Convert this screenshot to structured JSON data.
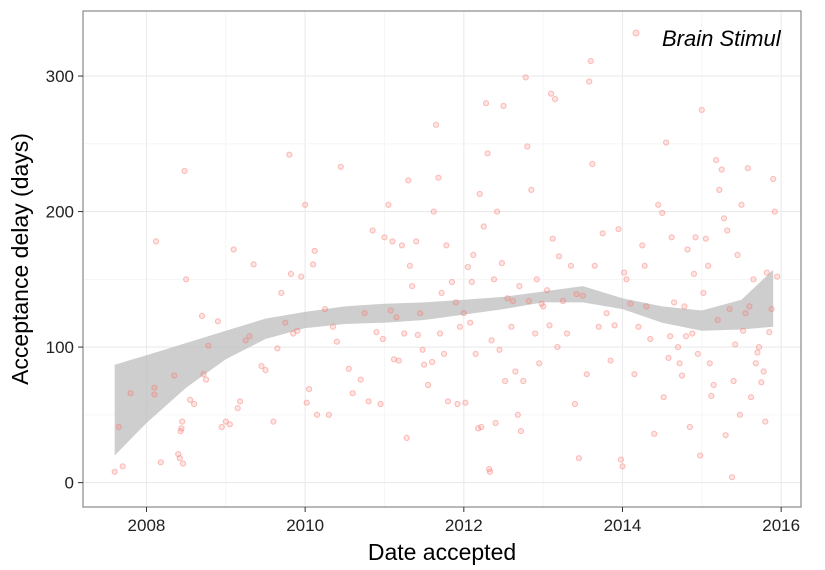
{
  "chart_data": {
    "type": "scatter",
    "xlabel": "Date accepted",
    "ylabel": "Acceptance delay (days)",
    "x_ticks": [
      "2008",
      "2010",
      "2012",
      "2014",
      "2016"
    ],
    "x_tick_values": [
      2008,
      2010,
      2012,
      2014,
      2016
    ],
    "y_ticks": [
      "0",
      "100",
      "200",
      "300"
    ],
    "y_tick_values": [
      0,
      100,
      200,
      300
    ],
    "xlim": [
      2007.2,
      2016.25
    ],
    "ylim": [
      -18,
      348
    ],
    "grid": true,
    "legend": {
      "position": "top-right",
      "entries": [
        "Brain Stimul"
      ]
    },
    "colors": {
      "points": "#f8766d",
      "band": "#bdbdbd",
      "grid": "#ebebeb",
      "frame": "#888888"
    },
    "series": [
      {
        "name": "Brain Stimul",
        "points": [
          [
            2007.6,
            8
          ],
          [
            2007.65,
            41
          ],
          [
            2007.7,
            12
          ],
          [
            2007.8,
            66
          ],
          [
            2008.1,
            65
          ],
          [
            2008.1,
            70
          ],
          [
            2008.12,
            178
          ],
          [
            2008.18,
            15
          ],
          [
            2008.35,
            79
          ],
          [
            2008.4,
            21
          ],
          [
            2008.42,
            18
          ],
          [
            2008.43,
            38
          ],
          [
            2008.44,
            40
          ],
          [
            2008.45,
            45
          ],
          [
            2008.46,
            14
          ],
          [
            2008.48,
            230
          ],
          [
            2008.5,
            150
          ],
          [
            2008.55,
            61
          ],
          [
            2008.6,
            58
          ],
          [
            2008.7,
            123
          ],
          [
            2008.72,
            80
          ],
          [
            2008.75,
            76
          ],
          [
            2008.78,
            101
          ],
          [
            2008.9,
            119
          ],
          [
            2008.95,
            41
          ],
          [
            2009.0,
            45
          ],
          [
            2009.05,
            43
          ],
          [
            2009.1,
            172
          ],
          [
            2009.15,
            55
          ],
          [
            2009.18,
            60
          ],
          [
            2009.25,
            105
          ],
          [
            2009.3,
            108
          ],
          [
            2009.35,
            161
          ],
          [
            2009.45,
            86
          ],
          [
            2009.5,
            83
          ],
          [
            2009.6,
            45
          ],
          [
            2009.65,
            99
          ],
          [
            2009.7,
            140
          ],
          [
            2009.75,
            118
          ],
          [
            2009.8,
            242
          ],
          [
            2009.82,
            154
          ],
          [
            2009.85,
            110
          ],
          [
            2009.9,
            112
          ],
          [
            2009.95,
            152
          ],
          [
            2010.0,
            205
          ],
          [
            2010.02,
            59
          ],
          [
            2010.05,
            69
          ],
          [
            2010.1,
            161
          ],
          [
            2010.12,
            171
          ],
          [
            2010.15,
            50
          ],
          [
            2010.25,
            128
          ],
          [
            2010.3,
            50
          ],
          [
            2010.35,
            115
          ],
          [
            2010.4,
            104
          ],
          [
            2010.45,
            233
          ],
          [
            2010.55,
            84
          ],
          [
            2010.6,
            66
          ],
          [
            2010.7,
            76
          ],
          [
            2010.75,
            125
          ],
          [
            2010.8,
            60
          ],
          [
            2010.85,
            186
          ],
          [
            2010.9,
            111
          ],
          [
            2010.95,
            58
          ],
          [
            2010.98,
            106
          ],
          [
            2011.0,
            181
          ],
          [
            2011.05,
            205
          ],
          [
            2011.08,
            127
          ],
          [
            2011.1,
            178
          ],
          [
            2011.12,
            91
          ],
          [
            2011.15,
            122
          ],
          [
            2011.18,
            90
          ],
          [
            2011.22,
            175
          ],
          [
            2011.25,
            110
          ],
          [
            2011.28,
            33
          ],
          [
            2011.3,
            223
          ],
          [
            2011.32,
            160
          ],
          [
            2011.35,
            145
          ],
          [
            2011.4,
            178
          ],
          [
            2011.42,
            109
          ],
          [
            2011.45,
            125
          ],
          [
            2011.48,
            98
          ],
          [
            2011.5,
            87
          ],
          [
            2011.55,
            72
          ],
          [
            2011.6,
            89
          ],
          [
            2011.62,
            200
          ],
          [
            2011.65,
            264
          ],
          [
            2011.68,
            225
          ],
          [
            2011.7,
            110
          ],
          [
            2011.72,
            140
          ],
          [
            2011.75,
            95
          ],
          [
            2011.78,
            175
          ],
          [
            2011.8,
            60
          ],
          [
            2011.85,
            148
          ],
          [
            2011.9,
            133
          ],
          [
            2011.92,
            58
          ],
          [
            2011.95,
            115
          ],
          [
            2012.0,
            125
          ],
          [
            2012.02,
            59
          ],
          [
            2012.05,
            159
          ],
          [
            2012.08,
            118
          ],
          [
            2012.1,
            148
          ],
          [
            2012.12,
            168
          ],
          [
            2012.15,
            95
          ],
          [
            2012.18,
            40
          ],
          [
            2012.2,
            213
          ],
          [
            2012.22,
            41
          ],
          [
            2012.25,
            189
          ],
          [
            2012.28,
            280
          ],
          [
            2012.3,
            243
          ],
          [
            2012.32,
            10
          ],
          [
            2012.33,
            8
          ],
          [
            2012.35,
            105
          ],
          [
            2012.38,
            150
          ],
          [
            2012.4,
            44
          ],
          [
            2012.42,
            200
          ],
          [
            2012.45,
            98
          ],
          [
            2012.48,
            162
          ],
          [
            2012.5,
            278
          ],
          [
            2012.52,
            75
          ],
          [
            2012.55,
            136
          ],
          [
            2012.6,
            115
          ],
          [
            2012.62,
            134
          ],
          [
            2012.65,
            82
          ],
          [
            2012.68,
            50
          ],
          [
            2012.7,
            145
          ],
          [
            2012.72,
            38
          ],
          [
            2012.75,
            75
          ],
          [
            2012.78,
            299
          ],
          [
            2012.8,
            248
          ],
          [
            2012.82,
            134
          ],
          [
            2012.85,
            216
          ],
          [
            2012.9,
            110
          ],
          [
            2012.92,
            150
          ],
          [
            2012.95,
            88
          ],
          [
            2012.98,
            132
          ],
          [
            2013.0,
            130
          ],
          [
            2013.05,
            142
          ],
          [
            2013.08,
            116
          ],
          [
            2013.1,
            287
          ],
          [
            2013.12,
            180
          ],
          [
            2013.15,
            283
          ],
          [
            2013.18,
            100
          ],
          [
            2013.2,
            167
          ],
          [
            2013.25,
            134
          ],
          [
            2013.3,
            110
          ],
          [
            2013.35,
            160
          ],
          [
            2013.4,
            58
          ],
          [
            2013.42,
            139
          ],
          [
            2013.45,
            18
          ],
          [
            2013.5,
            138
          ],
          [
            2013.55,
            80
          ],
          [
            2013.58,
            296
          ],
          [
            2013.6,
            311
          ],
          [
            2013.62,
            235
          ],
          [
            2013.65,
            160
          ],
          [
            2013.7,
            115
          ],
          [
            2013.75,
            184
          ],
          [
            2013.8,
            125
          ],
          [
            2013.85,
            90
          ],
          [
            2013.9,
            116
          ],
          [
            2013.95,
            187
          ],
          [
            2013.98,
            17
          ],
          [
            2014.0,
            12
          ],
          [
            2014.02,
            155
          ],
          [
            2014.05,
            150
          ],
          [
            2014.1,
            132
          ],
          [
            2014.15,
            80
          ],
          [
            2014.2,
            115
          ],
          [
            2014.25,
            175
          ],
          [
            2014.28,
            160
          ],
          [
            2014.3,
            130
          ],
          [
            2014.35,
            106
          ],
          [
            2014.4,
            36
          ],
          [
            2014.45,
            205
          ],
          [
            2014.5,
            199
          ],
          [
            2014.52,
            63
          ],
          [
            2014.55,
            251
          ],
          [
            2014.58,
            92
          ],
          [
            2014.6,
            108
          ],
          [
            2014.62,
            181
          ],
          [
            2014.65,
            133
          ],
          [
            2014.7,
            100
          ],
          [
            2014.72,
            88
          ],
          [
            2014.75,
            79
          ],
          [
            2014.78,
            130
          ],
          [
            2014.8,
            108
          ],
          [
            2014.82,
            172
          ],
          [
            2014.85,
            41
          ],
          [
            2014.88,
            110
          ],
          [
            2014.9,
            154
          ],
          [
            2014.92,
            181
          ],
          [
            2014.95,
            95
          ],
          [
            2014.98,
            20
          ],
          [
            2015.0,
            275
          ],
          [
            2015.02,
            140
          ],
          [
            2015.05,
            180
          ],
          [
            2015.08,
            160
          ],
          [
            2015.1,
            88
          ],
          [
            2015.12,
            64
          ],
          [
            2015.15,
            72
          ],
          [
            2015.18,
            238
          ],
          [
            2015.2,
            120
          ],
          [
            2015.22,
            216
          ],
          [
            2015.25,
            231
          ],
          [
            2015.28,
            195
          ],
          [
            2015.3,
            35
          ],
          [
            2015.32,
            186
          ],
          [
            2015.35,
            128
          ],
          [
            2015.38,
            4
          ],
          [
            2015.4,
            75
          ],
          [
            2015.42,
            102
          ],
          [
            2015.45,
            168
          ],
          [
            2015.48,
            50
          ],
          [
            2015.5,
            205
          ],
          [
            2015.52,
            112
          ],
          [
            2015.55,
            125
          ],
          [
            2015.58,
            232
          ],
          [
            2015.6,
            130
          ],
          [
            2015.62,
            63
          ],
          [
            2015.65,
            150
          ],
          [
            2015.68,
            88
          ],
          [
            2015.7,
            96
          ],
          [
            2015.72,
            100
          ],
          [
            2015.75,
            74
          ],
          [
            2015.78,
            82
          ],
          [
            2015.8,
            45
          ],
          [
            2015.82,
            155
          ],
          [
            2015.85,
            111
          ],
          [
            2015.88,
            128
          ],
          [
            2015.9,
            224
          ],
          [
            2015.92,
            200
          ],
          [
            2015.95,
            152
          ]
        ]
      },
      {
        "name": "",
        "type": "area",
        "smoothing_band_lower": [
          [
            2007.6,
            20
          ],
          [
            2008.0,
            44
          ],
          [
            2008.5,
            70
          ],
          [
            2009.0,
            91
          ],
          [
            2009.5,
            106
          ],
          [
            2010.0,
            114
          ],
          [
            2010.5,
            117
          ],
          [
            2011.0,
            118
          ],
          [
            2011.5,
            120
          ],
          [
            2012.0,
            124
          ],
          [
            2012.5,
            128
          ],
          [
            2013.0,
            133
          ],
          [
            2013.5,
            133
          ],
          [
            2014.0,
            128
          ],
          [
            2014.5,
            118
          ],
          [
            2015.0,
            112
          ],
          [
            2015.5,
            113
          ],
          [
            2015.9,
            115
          ]
        ],
        "smoothing_band_upper": [
          [
            2007.6,
            87
          ],
          [
            2008.0,
            94
          ],
          [
            2008.5,
            103
          ],
          [
            2009.0,
            112
          ],
          [
            2009.5,
            121
          ],
          [
            2010.0,
            126
          ],
          [
            2010.5,
            130
          ],
          [
            2011.0,
            132
          ],
          [
            2011.5,
            133
          ],
          [
            2012.0,
            135
          ],
          [
            2012.5,
            137
          ],
          [
            2013.0,
            141
          ],
          [
            2013.5,
            145
          ],
          [
            2014.0,
            136
          ],
          [
            2014.5,
            130
          ],
          [
            2015.0,
            127
          ],
          [
            2015.5,
            135
          ],
          [
            2015.9,
            157
          ]
        ]
      }
    ]
  }
}
